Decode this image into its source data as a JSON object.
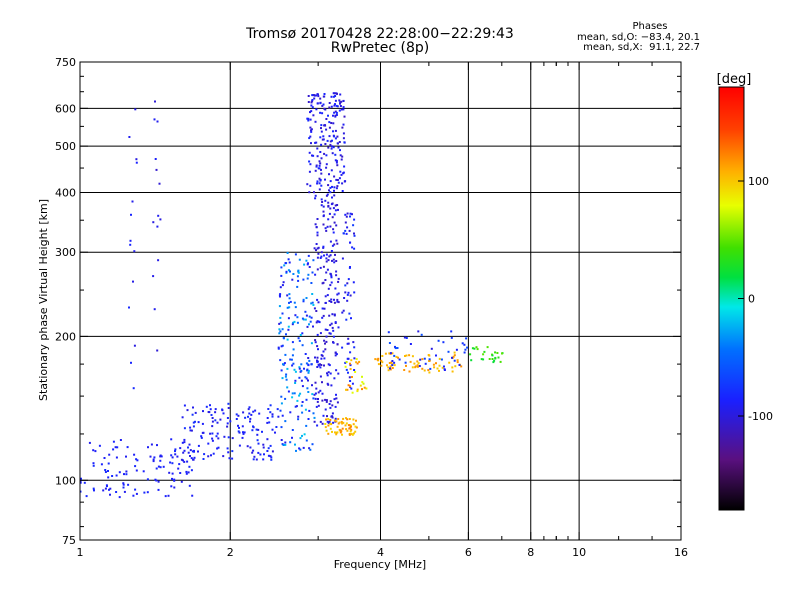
{
  "header": {
    "title": "Tromsø 20170428 22:28:00−22:29:43",
    "subtitle": "RwPretec (8p)",
    "stats_heading": "Phases",
    "stats_line1": "mean, sd,O: −83.4, 20.1",
    "stats_line2": "mean, sd,X:  91.1, 22.7"
  },
  "chart_data": {
    "type": "scatter",
    "title": "Tromsø 20170428 22:28:00−22:29:43",
    "subtitle": "RwPretec (8p)",
    "xlabel": "Frequency [MHz]",
    "ylabel": "Stationary phase Virtual Height [km]",
    "x_scale": "log",
    "y_scale": "log",
    "xlim": [
      1,
      16
    ],
    "ylim": [
      75,
      750
    ],
    "x_ticks": [
      1,
      2,
      4,
      6,
      8,
      10,
      16
    ],
    "x_tick_labels": [
      "1",
      "2",
      "4",
      "6",
      "8",
      "10",
      "16"
    ],
    "y_ticks": [
      75,
      100,
      200,
      300,
      400,
      500,
      600,
      750
    ],
    "y_tick_labels": [
      "75",
      "100",
      "200",
      "300",
      "400",
      "500",
      "600",
      "750"
    ],
    "grid_x": [
      1,
      2,
      4,
      6,
      8,
      10,
      16
    ],
    "grid_y": [
      100,
      200,
      300,
      400,
      500,
      600
    ],
    "grid": true,
    "colorbar": {
      "label": "[deg]",
      "range": [
        -180,
        180
      ],
      "ticks": [
        100,
        0,
        -100
      ],
      "tick_labels": [
        "100",
        "0",
        "-100"
      ]
    },
    "series": [
      {
        "clusters": [
          {
            "x": [
              1.0,
              1.7
            ],
            "y": [
              92,
              122
            ],
            "phase": [
              -95,
              -80
            ],
            "count": 120
          },
          {
            "x": [
              1.6,
              2.5
            ],
            "y": [
              110,
              145
            ],
            "phase": [
              -100,
              -75
            ],
            "count": 150
          },
          {
            "x": [
              2.5,
              2.95
            ],
            "y": [
              115,
              300
            ],
            "phase": [
              -100,
              -15
            ],
            "count": 200
          },
          {
            "x": [
              2.95,
              3.3
            ],
            "y": [
              130,
              400
            ],
            "phase": [
              -110,
              -85
            ],
            "count": 230
          },
          {
            "x": [
              2.85,
              3.4
            ],
            "y": [
              400,
              650
            ],
            "phase": [
              -110,
              -80
            ],
            "count": 200
          },
          {
            "x": [
              3.35,
              3.55
            ],
            "y": [
              155,
              370
            ],
            "phase": [
              -105,
              -70
            ],
            "count": 60
          },
          {
            "x": [
              3.1,
              3.6
            ],
            "y": [
              124,
              135
            ],
            "phase": [
              90,
              125
            ],
            "count": 60
          },
          {
            "x": [
              3.4,
              3.75
            ],
            "y": [
              150,
              180
            ],
            "phase": [
              70,
              125
            ],
            "count": 25
          },
          {
            "x": [
              3.9,
              5.9
            ],
            "y": [
              168,
              185
            ],
            "phase": [
              95,
              120
            ],
            "count": 70
          },
          {
            "x": [
              4.0,
              6.0
            ],
            "y": [
              170,
              205
            ],
            "phase": [
              -100,
              -60
            ],
            "count": 45
          },
          {
            "x": [
              6.0,
              7.1
            ],
            "y": [
              176,
              190
            ],
            "phase": [
              20,
              50
            ],
            "count": 25
          },
          {
            "x": [
              1.25,
              1.3
            ],
            "y": [
              150,
              600
            ],
            "phase": [
              -100,
              -80
            ],
            "count": 14
          },
          {
            "x": [
              1.4,
              1.45
            ],
            "y": [
              180,
              640
            ],
            "phase": [
              -110,
              -85
            ],
            "count": 14
          }
        ]
      }
    ]
  }
}
